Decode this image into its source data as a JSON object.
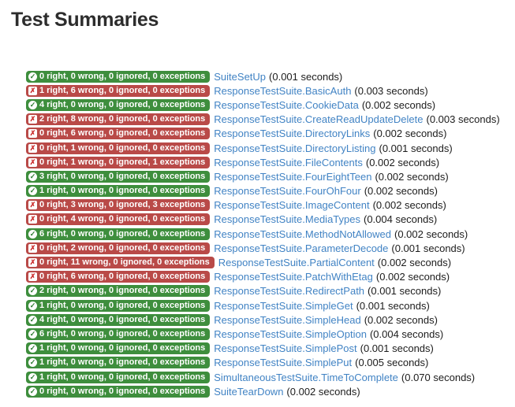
{
  "page": {
    "title": "Test Summaries"
  },
  "colors": {
    "pass_badge": "#3e8e3d",
    "fail_badge": "#b94a48",
    "link": "#4183c4",
    "badge_text": "#ffffff"
  },
  "icons": {
    "pass": "✓",
    "fail": "✗"
  },
  "rows": [
    {
      "status": "pass",
      "summary": "0 right, 0 wrong, 0 ignored, 0 exceptions",
      "name": "SuiteSetUp",
      "duration": "(0.001 seconds)"
    },
    {
      "status": "fail",
      "summary": "1 right, 6 wrong, 0 ignored, 0 exceptions",
      "name": "ResponseTestSuite.BasicAuth",
      "duration": "(0.003 seconds)"
    },
    {
      "status": "pass",
      "summary": "4 right, 0 wrong, 0 ignored, 0 exceptions",
      "name": "ResponseTestSuite.CookieData",
      "duration": "(0.002 seconds)"
    },
    {
      "status": "fail",
      "summary": "2 right, 8 wrong, 0 ignored, 0 exceptions",
      "name": "ResponseTestSuite.CreateReadUpdateDelete",
      "duration": "(0.003 seconds)"
    },
    {
      "status": "fail",
      "summary": "0 right, 6 wrong, 0 ignored, 0 exceptions",
      "name": "ResponseTestSuite.DirectoryLinks",
      "duration": "(0.002 seconds)"
    },
    {
      "status": "fail",
      "summary": "0 right, 1 wrong, 0 ignored, 0 exceptions",
      "name": "ResponseTestSuite.DirectoryListing",
      "duration": "(0.001 seconds)"
    },
    {
      "status": "fail",
      "summary": "0 right, 1 wrong, 0 ignored, 1 exceptions",
      "name": "ResponseTestSuite.FileContents",
      "duration": "(0.002 seconds)"
    },
    {
      "status": "pass",
      "summary": "3 right, 0 wrong, 0 ignored, 0 exceptions",
      "name": "ResponseTestSuite.FourEightTeen",
      "duration": "(0.002 seconds)"
    },
    {
      "status": "pass",
      "summary": "1 right, 0 wrong, 0 ignored, 0 exceptions",
      "name": "ResponseTestSuite.FourOhFour",
      "duration": "(0.002 seconds)"
    },
    {
      "status": "fail",
      "summary": "0 right, 3 wrong, 0 ignored, 3 exceptions",
      "name": "ResponseTestSuite.ImageContent",
      "duration": "(0.002 seconds)"
    },
    {
      "status": "fail",
      "summary": "0 right, 4 wrong, 0 ignored, 0 exceptions",
      "name": "ResponseTestSuite.MediaTypes",
      "duration": "(0.004 seconds)"
    },
    {
      "status": "pass",
      "summary": "6 right, 0 wrong, 0 ignored, 0 exceptions",
      "name": "ResponseTestSuite.MethodNotAllowed",
      "duration": "(0.002 seconds)"
    },
    {
      "status": "fail",
      "summary": "0 right, 2 wrong, 0 ignored, 0 exceptions",
      "name": "ResponseTestSuite.ParameterDecode",
      "duration": "(0.001 seconds)"
    },
    {
      "status": "fail",
      "summary": "0 right, 11 wrong, 0 ignored, 0 exceptions",
      "name": "ResponseTestSuite.PartialContent",
      "duration": "(0.002 seconds)"
    },
    {
      "status": "fail",
      "summary": "0 right, 6 wrong, 0 ignored, 0 exceptions",
      "name": "ResponseTestSuite.PatchWithEtag",
      "duration": "(0.002 seconds)"
    },
    {
      "status": "pass",
      "summary": "2 right, 0 wrong, 0 ignored, 0 exceptions",
      "name": "ResponseTestSuite.RedirectPath",
      "duration": "(0.001 seconds)"
    },
    {
      "status": "pass",
      "summary": "1 right, 0 wrong, 0 ignored, 0 exceptions",
      "name": "ResponseTestSuite.SimpleGet",
      "duration": "(0.001 seconds)"
    },
    {
      "status": "pass",
      "summary": "4 right, 0 wrong, 0 ignored, 0 exceptions",
      "name": "ResponseTestSuite.SimpleHead",
      "duration": "(0.002 seconds)"
    },
    {
      "status": "pass",
      "summary": "6 right, 0 wrong, 0 ignored, 0 exceptions",
      "name": "ResponseTestSuite.SimpleOption",
      "duration": "(0.004 seconds)"
    },
    {
      "status": "pass",
      "summary": "1 right, 0 wrong, 0 ignored, 0 exceptions",
      "name": "ResponseTestSuite.SimplePost",
      "duration": "(0.001 seconds)"
    },
    {
      "status": "pass",
      "summary": "1 right, 0 wrong, 0 ignored, 0 exceptions",
      "name": "ResponseTestSuite.SimplePut",
      "duration": "(0.005 seconds)"
    },
    {
      "status": "pass",
      "summary": "1 right, 0 wrong, 0 ignored, 0 exceptions",
      "name": "SimultaneousTestSuite.TimeToComplete",
      "duration": "(0.070 seconds)"
    },
    {
      "status": "pass",
      "summary": "0 right, 0 wrong, 0 ignored, 0 exceptions",
      "name": "SuiteTearDown",
      "duration": "(0.002 seconds)"
    }
  ]
}
